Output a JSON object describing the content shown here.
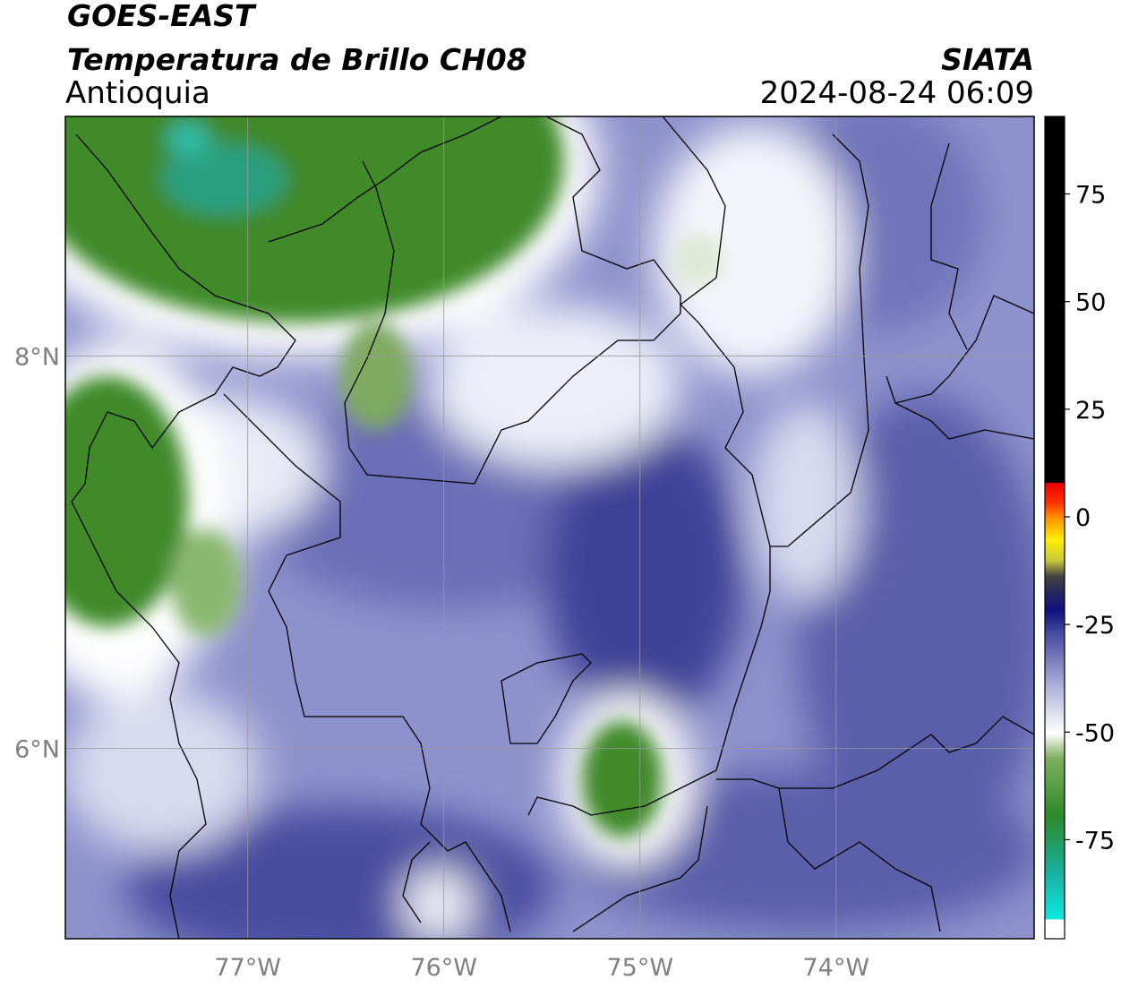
{
  "header": {
    "satellite": "GOES-EAST",
    "product": "Temperatura de Brillo CH08",
    "region": "Antioquia",
    "agency": "SIATA",
    "datetime": "2024-08-24 06:09"
  },
  "map": {
    "lon_lim": [
      -77.93,
      -72.99
    ],
    "lat_lim": [
      5.03,
      9.22
    ],
    "lon_ticks": [
      {
        "value": -77,
        "label": "77°W"
      },
      {
        "value": -76,
        "label": "76°W"
      },
      {
        "value": -75,
        "label": "75°W"
      },
      {
        "value": -74,
        "label": "74°W"
      }
    ],
    "lat_ticks": [
      {
        "value": 8,
        "label": "8°N"
      },
      {
        "value": 6,
        "label": "6°N"
      }
    ],
    "grid": true
  },
  "colorbar": {
    "lim": [
      -98,
      93
    ],
    "ticks": [
      75,
      50,
      25,
      0,
      -25,
      -50,
      -75
    ]
  }
}
